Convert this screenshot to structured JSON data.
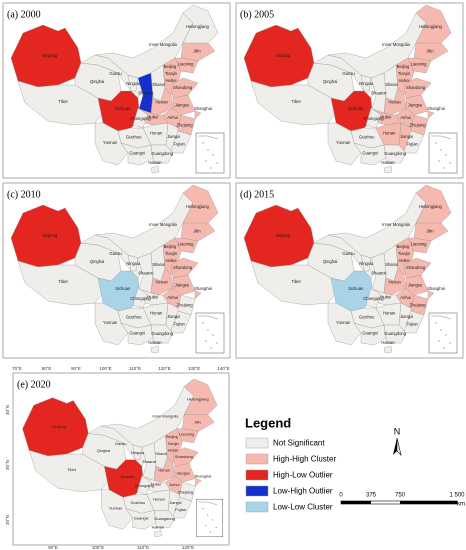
{
  "provinces": [
    "Xinjiang",
    "Tibet",
    "Qinghai",
    "Gansu",
    "Inner Mongolia",
    "Ningxia",
    "Shaanxi",
    "Shanxi",
    "Hebei",
    "Heilongjiang",
    "Jilin",
    "Liaoning",
    "Shandong",
    "Henan",
    "Jiangsu",
    "Anhui",
    "Shanghai",
    "Zhejiang",
    "Hubei",
    "Sichuan",
    "Chongqing",
    "Hunan",
    "Jiangxi",
    "Fujian",
    "Guizhou",
    "Yunnan",
    "Guangxi",
    "Guangdong",
    "Hainan",
    "Beijing",
    "Tianjin"
  ],
  "panels": [
    {
      "title": "(a) 2000",
      "classes": {
        "Xinjiang": "High-Low Outlier",
        "Sichuan": "High-Low Outlier",
        "Shaanxi": "Low-High Outlier",
        "Jilin": "High-High Cluster",
        "Liaoning": "High-High Cluster",
        "Hebei": "High-High Cluster",
        "Shandong": "High-High Cluster",
        "Henan": "High-High Cluster",
        "Jiangsu": "High-High Cluster",
        "Anhui": "High-High Cluster",
        "Shanghai": "High-High Cluster",
        "Zhejiang": "High-High Cluster",
        "Hubei": "High-High Cluster"
      }
    },
    {
      "title": "(b) 2005",
      "classes": {
        "Xinjiang": "High-Low Outlier",
        "Sichuan": "High-Low Outlier",
        "Heilongjiang": "High-High Cluster",
        "Jilin": "High-High Cluster",
        "Liaoning": "High-High Cluster",
        "Hebei": "High-High Cluster",
        "Shandong": "High-High Cluster",
        "Henan": "High-High Cluster",
        "Jiangsu": "High-High Cluster",
        "Anhui": "High-High Cluster",
        "Shanghai": "High-High Cluster",
        "Zhejiang": "High-High Cluster",
        "Jiangxi": "High-High Cluster",
        "Hubei": "High-High Cluster",
        "Hunan": "High-High Cluster"
      }
    },
    {
      "title": "(c) 2010",
      "classes": {
        "Xinjiang": "High-Low Outlier",
        "Sichuan": "Low-Low Cluster",
        "Heilongjiang": "High-High Cluster",
        "Jilin": "High-High Cluster",
        "Liaoning": "High-High Cluster",
        "Hebei": "High-High Cluster",
        "Shandong": "High-High Cluster",
        "Henan": "High-High Cluster",
        "Jiangsu": "High-High Cluster",
        "Anhui": "High-High Cluster",
        "Shanghai": "High-High Cluster"
      }
    },
    {
      "title": "(d) 2015",
      "classes": {
        "Xinjiang": "High-Low Outlier",
        "Sichuan": "Low-Low Cluster",
        "Heilongjiang": "High-High Cluster",
        "Jilin": "High-High Cluster",
        "Liaoning": "High-High Cluster",
        "Hebei": "High-High Cluster",
        "Shandong": "High-High Cluster",
        "Henan": "High-High Cluster",
        "Jiangsu": "High-High Cluster",
        "Anhui": "High-High Cluster",
        "Shanghai": "High-High Cluster",
        "Zhejiang": "High-High Cluster"
      }
    },
    {
      "title": "(e) 2020",
      "classes": {
        "Xinjiang": "High-Low Outlier",
        "Sichuan": "High-Low Outlier",
        "Heilongjiang": "High-High Cluster",
        "Jilin": "High-High Cluster",
        "Liaoning": "High-High Cluster",
        "Hebei": "High-High Cluster",
        "Shandong": "High-High Cluster",
        "Henan": "High-High Cluster",
        "Jiangsu": "High-High Cluster",
        "Anhui": "High-High Cluster",
        "Shanghai": "High-High Cluster"
      }
    }
  ],
  "graticule": {
    "top": [
      "70°E",
      "80°E",
      "90°E",
      "100°E",
      "110°E",
      "120°E",
      "130°E",
      "140°E"
    ],
    "bottom": [
      "90°E",
      "100°E",
      "110°E",
      "120°E"
    ],
    "left": [
      "40°N",
      "30°N",
      "20°N"
    ]
  },
  "legend": {
    "title": "Legend",
    "entries": [
      {
        "label": "Not Significant",
        "color": "#efeeea"
      },
      {
        "label": "High-High Cluster",
        "color": "#f5b9b0"
      },
      {
        "label": "High-Low Outlier",
        "color": "#e3261f"
      },
      {
        "label": "Low-High Outlier",
        "color": "#1530cc"
      },
      {
        "label": "Low-Low Cluster",
        "color": "#a9d3e6"
      }
    ]
  },
  "north": "N",
  "scale_bar": {
    "labels": [
      "0",
      "375",
      "750",
      "1 500"
    ],
    "unit": "km"
  }
}
